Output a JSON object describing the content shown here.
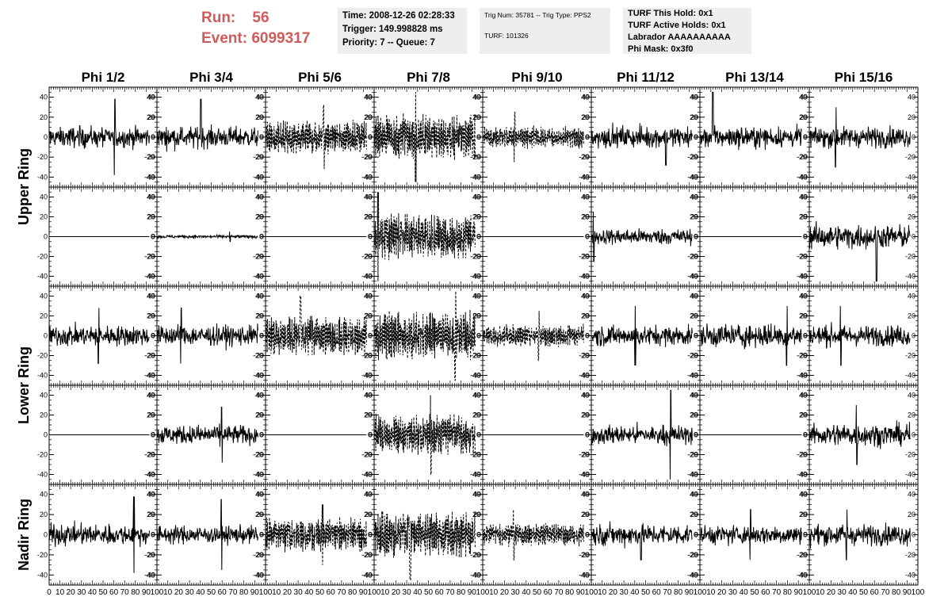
{
  "header": {
    "run_label": "Run:",
    "run_value": "56",
    "event_label": "Event:",
    "event_value": "6099317",
    "time": "Time: 2008-12-26 02:28:33",
    "trigger": "Trigger: 149.998828 ms",
    "priority": "Priority: 7 -- Queue: 7",
    "trig_num": "Trig Num: 35781 -- Trig Type: PPS2",
    "turf": "TURF: 101326",
    "turf_this_hold": "TURF This Hold: 0x1",
    "turf_active_holds": "TURF Active Holds: 0x1",
    "labrador": "Labrador AAAAAAAAAA",
    "phi_mask": "Phi Mask: 0x3f0"
  },
  "colors": {
    "header_red": "#d05a5a",
    "info_box_bg": "#eeeeee",
    "trace": "#000000"
  },
  "chart_data": {
    "type": "line",
    "columns": [
      "Phi 1/2",
      "Phi 3/4",
      "Phi 5/6",
      "Phi 7/8",
      "Phi 9/10",
      "Phi 11/12",
      "Phi 13/14",
      "Phi 15/16"
    ],
    "ring_labels": [
      {
        "label": "Upper Ring",
        "rows": [
          0,
          1
        ]
      },
      {
        "label": "Lower Ring",
        "rows": [
          2,
          3
        ]
      },
      {
        "label": "Nadir Ring",
        "rows": [
          4
        ]
      }
    ],
    "xlim": [
      0,
      100
    ],
    "ylim": [
      -50,
      50
    ],
    "y_ticks": [
      -40,
      -20,
      0,
      20,
      40
    ],
    "y_tick_labels": [
      "-40",
      "-20",
      "0",
      "20",
      "40"
    ],
    "x_ticks": [
      0,
      10,
      20,
      30,
      40,
      50,
      60,
      70,
      80,
      90,
      100
    ],
    "x_tick_labels": [
      "0",
      "10",
      "20",
      "30",
      "40",
      "50",
      "60",
      "70",
      "80",
      "90",
      "100"
    ],
    "trace_x_range": [
      0,
      93
    ],
    "panels": [
      {
        "row": 0,
        "col": 0,
        "style": "solid",
        "amplitude": 13,
        "spike": 38
      },
      {
        "row": 0,
        "col": 1,
        "style": "solid",
        "amplitude": 13,
        "spike": 38
      },
      {
        "row": 0,
        "col": 2,
        "style": "dashed",
        "amplitude": 15,
        "spike": 32
      },
      {
        "row": 0,
        "col": 3,
        "style": "dashed",
        "amplitude": 20,
        "spike": 45
      },
      {
        "row": 0,
        "col": 4,
        "style": "dashed",
        "amplitude": 10,
        "spike": 25
      },
      {
        "row": 0,
        "col": 5,
        "style": "solid",
        "amplitude": 13,
        "spike": 28
      },
      {
        "row": 0,
        "col": 6,
        "style": "solid",
        "amplitude": 13,
        "spike": 45
      },
      {
        "row": 0,
        "col": 7,
        "style": "solid",
        "amplitude": 13,
        "spike": 30
      },
      {
        "row": 1,
        "col": 0,
        "style": "flat",
        "amplitude": 0,
        "spike": 0
      },
      {
        "row": 1,
        "col": 1,
        "style": "solid",
        "amplitude": 2,
        "spike": 5
      },
      {
        "row": 1,
        "col": 2,
        "style": "flat",
        "amplitude": 0,
        "spike": 0
      },
      {
        "row": 1,
        "col": 3,
        "style": "dashed",
        "amplitude": 20,
        "spike": 45
      },
      {
        "row": 1,
        "col": 4,
        "style": "flat",
        "amplitude": 0,
        "spike": 0
      },
      {
        "row": 1,
        "col": 5,
        "style": "solid",
        "amplitude": 10,
        "spike": 25
      },
      {
        "row": 1,
        "col": 6,
        "style": "flat",
        "amplitude": 0,
        "spike": 0
      },
      {
        "row": 1,
        "col": 7,
        "style": "solid",
        "amplitude": 15,
        "spike": 45
      },
      {
        "row": 2,
        "col": 0,
        "style": "solid",
        "amplitude": 13,
        "spike": 28
      },
      {
        "row": 2,
        "col": 1,
        "style": "solid",
        "amplitude": 13,
        "spike": 28
      },
      {
        "row": 2,
        "col": 2,
        "style": "dashed",
        "amplitude": 18,
        "spike": 40
      },
      {
        "row": 2,
        "col": 3,
        "style": "dashed",
        "amplitude": 22,
        "spike": 45
      },
      {
        "row": 2,
        "col": 4,
        "style": "dashed",
        "amplitude": 10,
        "spike": 25
      },
      {
        "row": 2,
        "col": 5,
        "style": "solid",
        "amplitude": 13,
        "spike": 30
      },
      {
        "row": 2,
        "col": 6,
        "style": "solid",
        "amplitude": 15,
        "spike": 30
      },
      {
        "row": 2,
        "col": 7,
        "style": "solid",
        "amplitude": 13,
        "spike": 30
      },
      {
        "row": 3,
        "col": 0,
        "style": "flat",
        "amplitude": 0,
        "spike": 0
      },
      {
        "row": 3,
        "col": 1,
        "style": "solid",
        "amplitude": 12,
        "spike": 28
      },
      {
        "row": 3,
        "col": 2,
        "style": "flat",
        "amplitude": 0,
        "spike": 0
      },
      {
        "row": 3,
        "col": 3,
        "style": "dashed",
        "amplitude": 18,
        "spike": 40
      },
      {
        "row": 3,
        "col": 4,
        "style": "flat",
        "amplitude": 0,
        "spike": 0
      },
      {
        "row": 3,
        "col": 5,
        "style": "solid",
        "amplitude": 12,
        "spike": 45
      },
      {
        "row": 3,
        "col": 6,
        "style": "flat",
        "amplitude": 0,
        "spike": 0
      },
      {
        "row": 3,
        "col": 7,
        "style": "solid",
        "amplitude": 14,
        "spike": 30
      },
      {
        "row": 4,
        "col": 0,
        "style": "solid",
        "amplitude": 13,
        "spike": 38
      },
      {
        "row": 4,
        "col": 1,
        "style": "solid",
        "amplitude": 11,
        "spike": 35
      },
      {
        "row": 4,
        "col": 2,
        "style": "dashed",
        "amplitude": 15,
        "spike": 30
      },
      {
        "row": 4,
        "col": 3,
        "style": "dashed",
        "amplitude": 20,
        "spike": 45
      },
      {
        "row": 4,
        "col": 4,
        "style": "dashed",
        "amplitude": 10,
        "spike": 25
      },
      {
        "row": 4,
        "col": 5,
        "style": "solid",
        "amplitude": 13,
        "spike": 25
      },
      {
        "row": 4,
        "col": 6,
        "style": "solid",
        "amplitude": 12,
        "spike": 25
      },
      {
        "row": 4,
        "col": 7,
        "style": "solid",
        "amplitude": 13,
        "spike": 25
      }
    ]
  }
}
